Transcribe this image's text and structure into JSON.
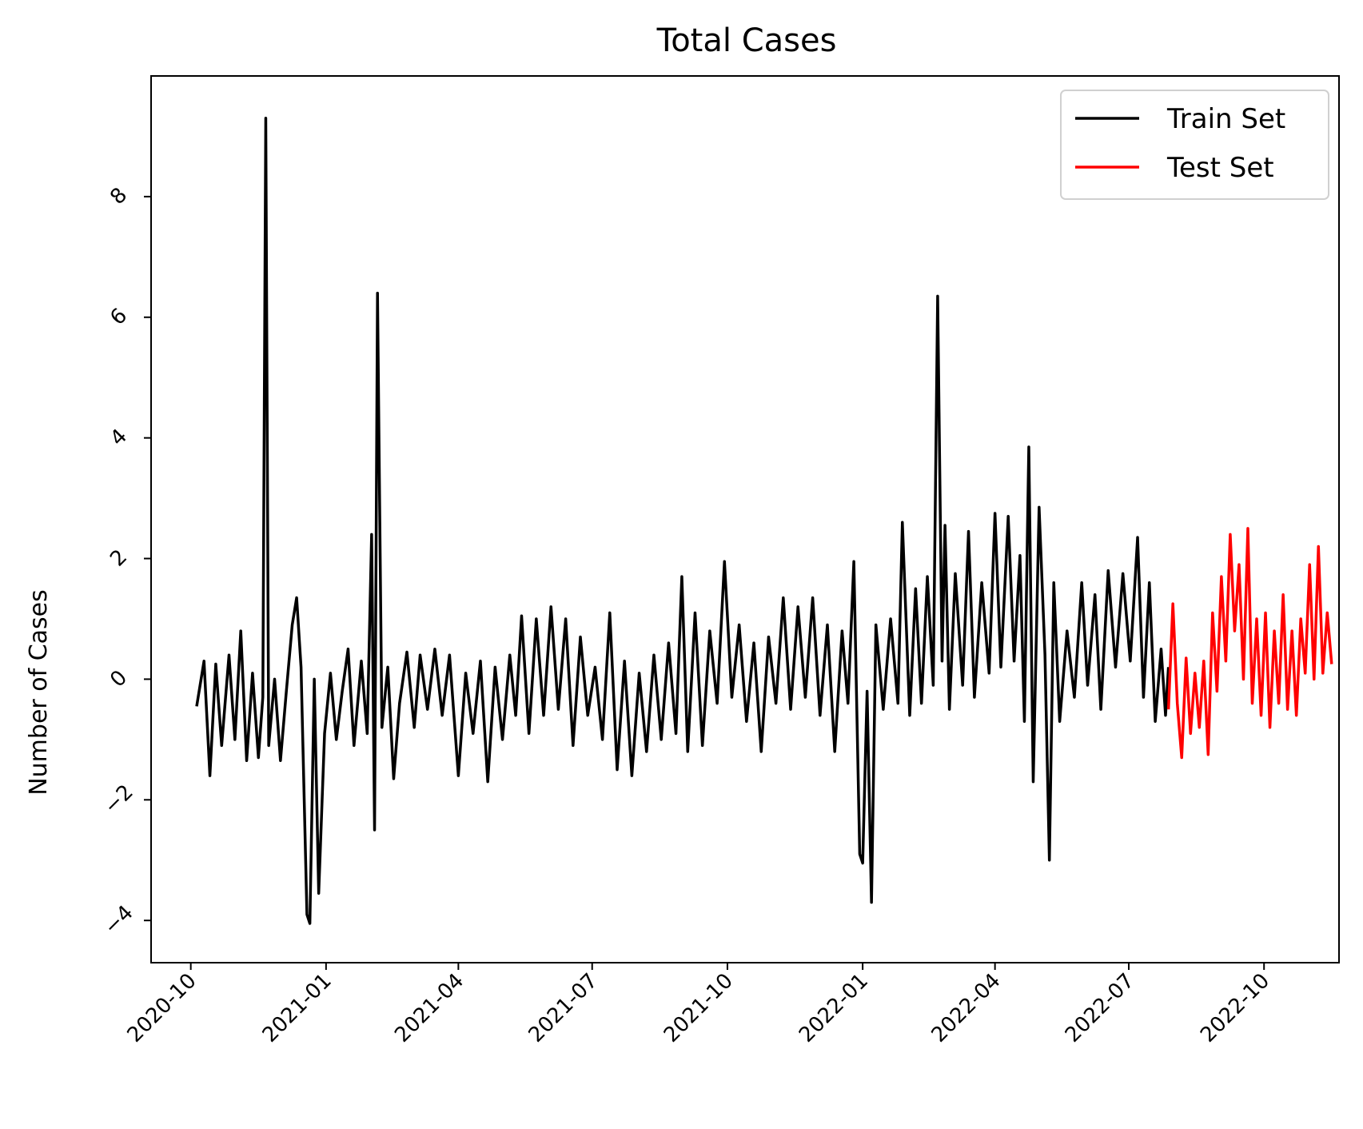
{
  "chart_data": {
    "type": "line",
    "title": "Total Cases",
    "xlabel": "",
    "ylabel": "Number of Cases",
    "x_range": [
      "2020-09-04",
      "2022-11-21"
    ],
    "ylim": [
      -4.7,
      10.0
    ],
    "x_ticks": [
      "2020-10",
      "2021-01",
      "2021-04",
      "2021-07",
      "2021-10",
      "2022-01",
      "2022-04",
      "2022-07",
      "2022-10"
    ],
    "y_ticks": [
      -4,
      -2,
      0,
      2,
      4,
      6,
      8
    ],
    "y_tick_labels": [
      "−4",
      "−2",
      "0",
      "2",
      "4",
      "6",
      "8"
    ],
    "legend": {
      "position": "top-right"
    },
    "series": [
      {
        "name": "Train Set",
        "color": "#000000",
        "points": [
          [
            "2020-10-05",
            -0.45
          ],
          [
            "2020-10-10",
            0.3
          ],
          [
            "2020-10-14",
            -1.6
          ],
          [
            "2020-10-18",
            0.25
          ],
          [
            "2020-10-22",
            -1.1
          ],
          [
            "2020-10-27",
            0.4
          ],
          [
            "2020-10-31",
            -1.0
          ],
          [
            "2020-11-04",
            0.8
          ],
          [
            "2020-11-08",
            -1.35
          ],
          [
            "2020-11-12",
            0.1
          ],
          [
            "2020-11-16",
            -1.3
          ],
          [
            "2020-11-19",
            -0.3
          ],
          [
            "2020-11-21",
            9.3
          ],
          [
            "2020-11-23",
            -1.1
          ],
          [
            "2020-11-27",
            0.0
          ],
          [
            "2020-12-01",
            -1.35
          ],
          [
            "2020-12-05",
            -0.2
          ],
          [
            "2020-12-09",
            0.9
          ],
          [
            "2020-12-12",
            1.35
          ],
          [
            "2020-12-15",
            0.2
          ],
          [
            "2020-12-19",
            -3.9
          ],
          [
            "2020-12-21",
            -4.05
          ],
          [
            "2020-12-24",
            0.0
          ],
          [
            "2020-12-27",
            -3.55
          ],
          [
            "2020-12-31",
            -0.9
          ],
          [
            "2021-01-04",
            0.1
          ],
          [
            "2021-01-08",
            -1.0
          ],
          [
            "2021-01-12",
            -0.2
          ],
          [
            "2021-01-16",
            0.5
          ],
          [
            "2021-01-20",
            -1.1
          ],
          [
            "2021-01-25",
            0.3
          ],
          [
            "2021-01-29",
            -0.9
          ],
          [
            "2021-02-01",
            2.4
          ],
          [
            "2021-02-03",
            -2.5
          ],
          [
            "2021-02-05",
            6.4
          ],
          [
            "2021-02-08",
            -0.8
          ],
          [
            "2021-02-12",
            0.2
          ],
          [
            "2021-02-16",
            -1.65
          ],
          [
            "2021-02-20",
            -0.4
          ],
          [
            "2021-02-25",
            0.45
          ],
          [
            "2021-03-02",
            -0.8
          ],
          [
            "2021-03-06",
            0.4
          ],
          [
            "2021-03-11",
            -0.5
          ],
          [
            "2021-03-16",
            0.5
          ],
          [
            "2021-03-21",
            -0.6
          ],
          [
            "2021-03-26",
            0.4
          ],
          [
            "2021-04-01",
            -1.6
          ],
          [
            "2021-04-06",
            0.1
          ],
          [
            "2021-04-11",
            -0.9
          ],
          [
            "2021-04-16",
            0.3
          ],
          [
            "2021-04-21",
            -1.7
          ],
          [
            "2021-04-26",
            0.2
          ],
          [
            "2021-05-01",
            -1.0
          ],
          [
            "2021-05-06",
            0.4
          ],
          [
            "2021-05-10",
            -0.6
          ],
          [
            "2021-05-14",
            1.05
          ],
          [
            "2021-05-19",
            -0.9
          ],
          [
            "2021-05-24",
            1.0
          ],
          [
            "2021-05-29",
            -0.6
          ],
          [
            "2021-06-03",
            1.2
          ],
          [
            "2021-06-08",
            -0.5
          ],
          [
            "2021-06-13",
            1.0
          ],
          [
            "2021-06-18",
            -1.1
          ],
          [
            "2021-06-23",
            0.7
          ],
          [
            "2021-06-28",
            -0.6
          ],
          [
            "2021-07-03",
            0.2
          ],
          [
            "2021-07-08",
            -1.0
          ],
          [
            "2021-07-13",
            1.1
          ],
          [
            "2021-07-18",
            -1.5
          ],
          [
            "2021-07-23",
            0.3
          ],
          [
            "2021-07-28",
            -1.6
          ],
          [
            "2021-08-02",
            0.1
          ],
          [
            "2021-08-07",
            -1.2
          ],
          [
            "2021-08-12",
            0.4
          ],
          [
            "2021-08-17",
            -1.0
          ],
          [
            "2021-08-22",
            0.6
          ],
          [
            "2021-08-27",
            -0.9
          ],
          [
            "2021-08-31",
            1.7
          ],
          [
            "2021-09-04",
            -1.2
          ],
          [
            "2021-09-09",
            1.1
          ],
          [
            "2021-09-14",
            -1.1
          ],
          [
            "2021-09-19",
            0.8
          ],
          [
            "2021-09-24",
            -0.4
          ],
          [
            "2021-09-29",
            1.95
          ],
          [
            "2021-10-04",
            -0.3
          ],
          [
            "2021-10-09",
            0.9
          ],
          [
            "2021-10-14",
            -0.7
          ],
          [
            "2021-10-19",
            0.6
          ],
          [
            "2021-10-24",
            -1.2
          ],
          [
            "2021-10-29",
            0.7
          ],
          [
            "2021-11-03",
            -0.4
          ],
          [
            "2021-11-08",
            1.35
          ],
          [
            "2021-11-13",
            -0.5
          ],
          [
            "2021-11-18",
            1.2
          ],
          [
            "2021-11-23",
            -0.3
          ],
          [
            "2021-11-28",
            1.35
          ],
          [
            "2021-12-03",
            -0.6
          ],
          [
            "2021-12-08",
            0.9
          ],
          [
            "2021-12-13",
            -1.2
          ],
          [
            "2021-12-18",
            0.8
          ],
          [
            "2021-12-22",
            -0.4
          ],
          [
            "2021-12-26",
            1.95
          ],
          [
            "2021-12-30",
            -2.9
          ],
          [
            "2022-01-01",
            -3.05
          ],
          [
            "2022-01-04",
            -0.2
          ],
          [
            "2022-01-07",
            -3.7
          ],
          [
            "2022-01-10",
            0.9
          ],
          [
            "2022-01-15",
            -0.5
          ],
          [
            "2022-01-20",
            1.0
          ],
          [
            "2022-01-25",
            -0.4
          ],
          [
            "2022-01-28",
            2.6
          ],
          [
            "2022-02-02",
            -0.6
          ],
          [
            "2022-02-06",
            1.5
          ],
          [
            "2022-02-10",
            -0.4
          ],
          [
            "2022-02-14",
            1.7
          ],
          [
            "2022-02-18",
            -0.1
          ],
          [
            "2022-02-21",
            6.35
          ],
          [
            "2022-02-24",
            0.3
          ],
          [
            "2022-02-26",
            2.55
          ],
          [
            "2022-03-01",
            -0.5
          ],
          [
            "2022-03-05",
            1.75
          ],
          [
            "2022-03-10",
            -0.1
          ],
          [
            "2022-03-14",
            2.45
          ],
          [
            "2022-03-18",
            -0.3
          ],
          [
            "2022-03-23",
            1.6
          ],
          [
            "2022-03-28",
            0.1
          ],
          [
            "2022-04-01",
            2.75
          ],
          [
            "2022-04-05",
            0.2
          ],
          [
            "2022-04-10",
            2.7
          ],
          [
            "2022-04-14",
            0.3
          ],
          [
            "2022-04-18",
            2.05
          ],
          [
            "2022-04-21",
            -0.7
          ],
          [
            "2022-04-24",
            3.85
          ],
          [
            "2022-04-27",
            -1.7
          ],
          [
            "2022-05-01",
            2.85
          ],
          [
            "2022-05-05",
            0.4
          ],
          [
            "2022-05-08",
            -3.0
          ],
          [
            "2022-05-11",
            1.6
          ],
          [
            "2022-05-15",
            -0.7
          ],
          [
            "2022-05-20",
            0.8
          ],
          [
            "2022-05-25",
            -0.3
          ],
          [
            "2022-05-30",
            1.6
          ],
          [
            "2022-06-03",
            -0.1
          ],
          [
            "2022-06-08",
            1.4
          ],
          [
            "2022-06-12",
            -0.5
          ],
          [
            "2022-06-17",
            1.8
          ],
          [
            "2022-06-22",
            0.2
          ],
          [
            "2022-06-27",
            1.75
          ],
          [
            "2022-07-02",
            0.3
          ],
          [
            "2022-07-07",
            2.35
          ],
          [
            "2022-07-11",
            -0.3
          ],
          [
            "2022-07-15",
            1.6
          ],
          [
            "2022-07-19",
            -0.7
          ],
          [
            "2022-07-23",
            0.5
          ],
          [
            "2022-07-26",
            -0.6
          ],
          [
            "2022-07-28",
            0.2
          ]
        ]
      },
      {
        "name": "Test Set",
        "color": "#ff0000",
        "points": [
          [
            "2022-07-28",
            -0.5
          ],
          [
            "2022-07-31",
            1.25
          ],
          [
            "2022-08-03",
            -0.4
          ],
          [
            "2022-08-06",
            -1.3
          ],
          [
            "2022-08-09",
            0.35
          ],
          [
            "2022-08-12",
            -0.9
          ],
          [
            "2022-08-15",
            0.1
          ],
          [
            "2022-08-18",
            -0.8
          ],
          [
            "2022-08-21",
            0.3
          ],
          [
            "2022-08-24",
            -1.25
          ],
          [
            "2022-08-27",
            1.1
          ],
          [
            "2022-08-30",
            -0.2
          ],
          [
            "2022-09-02",
            1.7
          ],
          [
            "2022-09-05",
            0.3
          ],
          [
            "2022-09-08",
            2.4
          ],
          [
            "2022-09-11",
            0.8
          ],
          [
            "2022-09-14",
            1.9
          ],
          [
            "2022-09-17",
            0.0
          ],
          [
            "2022-09-20",
            2.5
          ],
          [
            "2022-09-23",
            -0.4
          ],
          [
            "2022-09-26",
            1.0
          ],
          [
            "2022-09-29",
            -0.6
          ],
          [
            "2022-10-02",
            1.1
          ],
          [
            "2022-10-05",
            -0.8
          ],
          [
            "2022-10-08",
            0.8
          ],
          [
            "2022-10-11",
            -0.4
          ],
          [
            "2022-10-14",
            1.4
          ],
          [
            "2022-10-17",
            -0.5
          ],
          [
            "2022-10-20",
            0.8
          ],
          [
            "2022-10-23",
            -0.6
          ],
          [
            "2022-10-26",
            1.0
          ],
          [
            "2022-10-29",
            0.1
          ],
          [
            "2022-11-01",
            1.9
          ],
          [
            "2022-11-04",
            0.0
          ],
          [
            "2022-11-07",
            2.2
          ],
          [
            "2022-11-10",
            0.1
          ],
          [
            "2022-11-13",
            1.1
          ],
          [
            "2022-11-16",
            0.25
          ]
        ]
      }
    ]
  }
}
